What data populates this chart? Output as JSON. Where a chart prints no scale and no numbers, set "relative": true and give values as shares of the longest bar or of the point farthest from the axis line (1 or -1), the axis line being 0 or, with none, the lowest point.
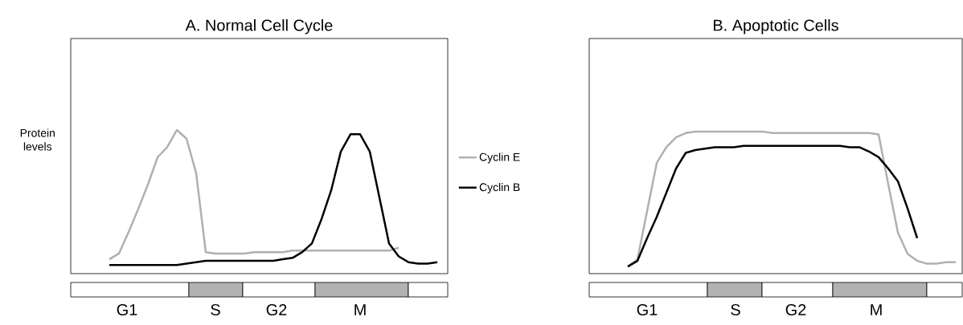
{
  "chart_data": [
    {
      "type": "line",
      "title": "A. Normal Cell Cycle",
      "ylabel": "Protein levels",
      "relative": true,
      "legend": "right",
      "categories": [
        null,
        null,
        null,
        null,
        null,
        null,
        null,
        null,
        null,
        null,
        null,
        null,
        null,
        null,
        null,
        null,
        null,
        null,
        null,
        null,
        null,
        null,
        null,
        null,
        null,
        null,
        null,
        null,
        null,
        null,
        null,
        null,
        null,
        null,
        null
      ],
      "series": [
        {
          "name": "Cyclin E",
          "color": "#b0b0b0",
          "values": [
            0.1,
            0.14,
            0.29,
            0.45,
            0.62,
            0.81,
            0.88,
            1.0,
            0.94,
            0.7,
            0.15,
            0.14,
            0.14,
            0.14,
            0.14,
            0.15,
            0.15,
            0.15,
            0.15,
            0.16,
            0.16,
            0.16,
            0.16,
            0.16,
            0.16,
            0.16,
            0.16,
            0.16,
            0.16,
            0.16,
            0.18,
            null,
            null,
            null,
            null
          ]
        },
        {
          "name": "Cyclin B",
          "color": "#000000",
          "values": [
            0.06,
            0.06,
            0.06,
            0.06,
            0.06,
            0.06,
            0.06,
            0.06,
            0.07,
            0.08,
            0.09,
            0.09,
            0.09,
            0.09,
            0.09,
            0.09,
            0.09,
            0.09,
            0.1,
            0.11,
            0.15,
            0.21,
            0.38,
            0.58,
            0.85,
            0.97,
            0.97,
            0.85,
            0.53,
            0.21,
            0.12,
            0.08,
            0.07,
            0.07,
            0.08
          ]
        }
      ],
      "annotations": [
        "G1",
        "S",
        "G2",
        "M"
      ]
    },
    {
      "type": "line",
      "title": "B. Apoptotic Cells",
      "relative": true,
      "categories": [
        null,
        null,
        null,
        null,
        null,
        null,
        null,
        null,
        null,
        null,
        null,
        null,
        null,
        null,
        null,
        null,
        null,
        null,
        null,
        null,
        null,
        null,
        null,
        null,
        null,
        null,
        null,
        null,
        null,
        null,
        null,
        null,
        null,
        null,
        null
      ],
      "series": [
        {
          "color": "#b0b0b0",
          "values": [
            0.05,
            0.1,
            0.44,
            0.78,
            0.89,
            0.96,
            0.99,
            1.0,
            1.0,
            1.0,
            1.0,
            1.0,
            1.0,
            1.0,
            1.0,
            0.99,
            0.99,
            0.99,
            0.99,
            0.99,
            0.99,
            0.99,
            0.99,
            0.99,
            0.99,
            0.99,
            0.98,
            0.63,
            0.29,
            0.14,
            0.09,
            0.07,
            0.07,
            0.08,
            0.08
          ]
        },
        {
          "color": "#000000",
          "values": [
            0.05,
            0.09,
            0.25,
            0.4,
            0.57,
            0.74,
            0.85,
            0.87,
            0.88,
            0.89,
            0.89,
            0.89,
            0.9,
            0.9,
            0.9,
            0.9,
            0.9,
            0.9,
            0.9,
            0.9,
            0.9,
            0.9,
            0.9,
            0.89,
            0.89,
            0.86,
            0.82,
            0.74,
            0.65,
            0.46,
            0.25,
            null,
            null,
            null,
            null
          ]
        }
      ],
      "annotations": [
        "G1",
        "S",
        "G2",
        "M"
      ]
    }
  ]
}
